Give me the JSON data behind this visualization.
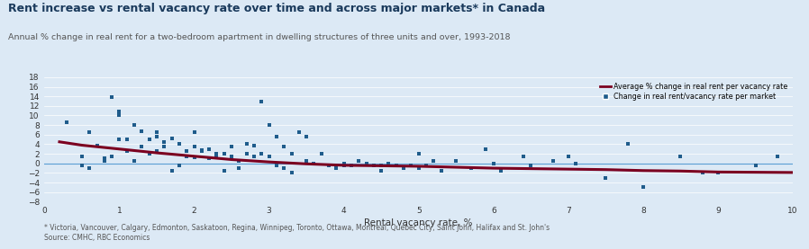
{
  "title": "Rent increase vs rental vacancy rate over time and across major markets* in Canada",
  "subtitle": "Annual % change in real rent for a two-bedroom apartment in dwelling structures of three units and over, 1993-2018",
  "xlabel": "Rental vacancy rate, %",
  "footnote": "* Victoria, Vancouver, Calgary, Edmonton, Saskatoon, Regina, Winnipeg, Toronto, Ottawa, Montreal, Quebec City, Saint John, Halifax and St. John's\nSource: CMHC, RBC Economics",
  "xlim": [
    0,
    10
  ],
  "ylim": [
    -8,
    18
  ],
  "yticks": [
    -8,
    -6,
    -4,
    -2,
    0,
    2,
    4,
    6,
    8,
    10,
    12,
    14,
    16,
    18
  ],
  "xticks": [
    0,
    1,
    2,
    3,
    4,
    5,
    6,
    7,
    8,
    9,
    10
  ],
  "background_color": "#dce9f5",
  "scatter_color": "#1f5c8b",
  "line_color": "#7b0020",
  "zero_line_color": "#5a9fd4",
  "legend_line_label": "Average % change in real rent per vacancy rate",
  "legend_scatter_label": "Change in real rent/vacancy rate per market",
  "scatter_x": [
    0.3,
    0.5,
    0.5,
    0.6,
    0.6,
    0.7,
    0.8,
    0.8,
    0.9,
    0.9,
    1.0,
    1.0,
    1.0,
    1.1,
    1.1,
    1.2,
    1.2,
    1.3,
    1.3,
    1.4,
    1.4,
    1.5,
    1.5,
    1.5,
    1.6,
    1.6,
    1.7,
    1.7,
    1.8,
    1.8,
    1.9,
    1.9,
    2.0,
    2.0,
    2.0,
    2.1,
    2.1,
    2.2,
    2.2,
    2.3,
    2.3,
    2.4,
    2.4,
    2.5,
    2.5,
    2.6,
    2.6,
    2.7,
    2.7,
    2.8,
    2.8,
    2.9,
    2.9,
    3.0,
    3.0,
    3.1,
    3.1,
    3.2,
    3.2,
    3.3,
    3.3,
    3.4,
    3.5,
    3.5,
    3.6,
    3.7,
    3.8,
    3.9,
    4.0,
    4.0,
    4.1,
    4.2,
    4.3,
    4.4,
    4.5,
    4.5,
    4.6,
    4.7,
    4.8,
    4.9,
    5.0,
    5.0,
    5.1,
    5.2,
    5.3,
    5.5,
    5.7,
    5.9,
    6.0,
    6.1,
    6.4,
    6.5,
    6.8,
    7.0,
    7.1,
    7.5,
    7.8,
    8.0,
    8.5,
    8.8,
    9.0,
    9.5,
    9.8
  ],
  "scatter_y": [
    8.5,
    1.5,
    -0.5,
    6.5,
    -1.0,
    3.8,
    1.0,
    0.5,
    13.8,
    1.5,
    10.8,
    10.0,
    5.0,
    5.0,
    2.5,
    8.0,
    0.5,
    6.8,
    3.5,
    5.0,
    2.0,
    6.5,
    5.5,
    2.5,
    4.5,
    3.5,
    5.2,
    -1.5,
    4.0,
    -0.5,
    2.5,
    1.5,
    6.5,
    3.5,
    1.2,
    2.8,
    2.5,
    3.0,
    1.0,
    2.0,
    1.5,
    2.0,
    -1.5,
    3.5,
    1.5,
    0.5,
    -1.0,
    4.0,
    2.0,
    3.8,
    1.5,
    13.0,
    2.0,
    8.0,
    1.5,
    5.5,
    -0.5,
    3.5,
    -1.0,
    2.0,
    -2.0,
    6.5,
    5.5,
    0.5,
    0.0,
    2.0,
    -0.5,
    -1.0,
    0.0,
    -0.5,
    -0.5,
    0.5,
    0.0,
    -0.5,
    -0.5,
    -1.5,
    0.0,
    -0.5,
    -1.0,
    -0.5,
    2.0,
    -1.0,
    -0.5,
    0.5,
    -1.5,
    0.5,
    -1.0,
    3.0,
    0.0,
    -1.5,
    1.5,
    -0.5,
    0.5,
    1.5,
    0.0,
    -3.0,
    4.0,
    -5.0,
    1.5,
    -2.0,
    -2.0,
    -0.5,
    1.5
  ],
  "line_x": [
    0.2,
    0.5,
    1.0,
    1.5,
    2.0,
    2.5,
    3.0,
    3.5,
    4.0,
    4.5,
    5.0,
    5.5,
    6.0,
    6.5,
    7.0,
    7.5,
    8.0,
    8.5,
    9.0,
    9.5,
    10.0
  ],
  "line_y": [
    4.5,
    3.8,
    3.0,
    2.2,
    1.5,
    0.8,
    0.3,
    -0.1,
    -0.4,
    -0.5,
    -0.6,
    -0.8,
    -1.0,
    -1.1,
    -1.2,
    -1.3,
    -1.5,
    -1.6,
    -1.8,
    -1.85,
    -1.9
  ]
}
